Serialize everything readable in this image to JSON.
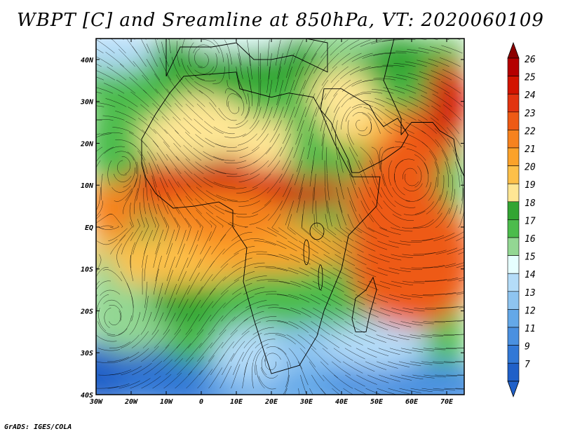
{
  "title": "WBPT [C] and Sreamline at 850hPa, VT: 2020060109",
  "map": {
    "lat_labels": [
      "40N",
      "30N",
      "20N",
      "10N",
      "EQ",
      "10S",
      "20S",
      "30S",
      "40S"
    ],
    "lon_labels": [
      "30W",
      "20W",
      "10W",
      "0",
      "10E",
      "20E",
      "30E",
      "40E",
      "50E",
      "60E",
      "70E"
    ],
    "lat_range": [
      -40,
      45
    ],
    "lon_range": [
      -30,
      75
    ]
  },
  "colorbar": {
    "levels": [
      "26",
      "25",
      "24",
      "23",
      "22",
      "21",
      "20",
      "19",
      "18",
      "17",
      "16",
      "15",
      "14",
      "13",
      "12",
      "11",
      "9",
      "7"
    ],
    "colors": [
      "#b50000",
      "#d21400",
      "#e23410",
      "#ee5a14",
      "#f6821e",
      "#fba22a",
      "#fdc049",
      "#ffe694",
      "#33a533",
      "#4cbc4c",
      "#93d793",
      "#e6ffff",
      "#b4dcf8",
      "#8ec4f0",
      "#64a8e8",
      "#4a90e0",
      "#3278d6",
      "#2060c8"
    ],
    "top_color": "#8c0000",
    "bottom_color": "#2060c8"
  },
  "credit": "GrADS: IGES/COLA"
}
